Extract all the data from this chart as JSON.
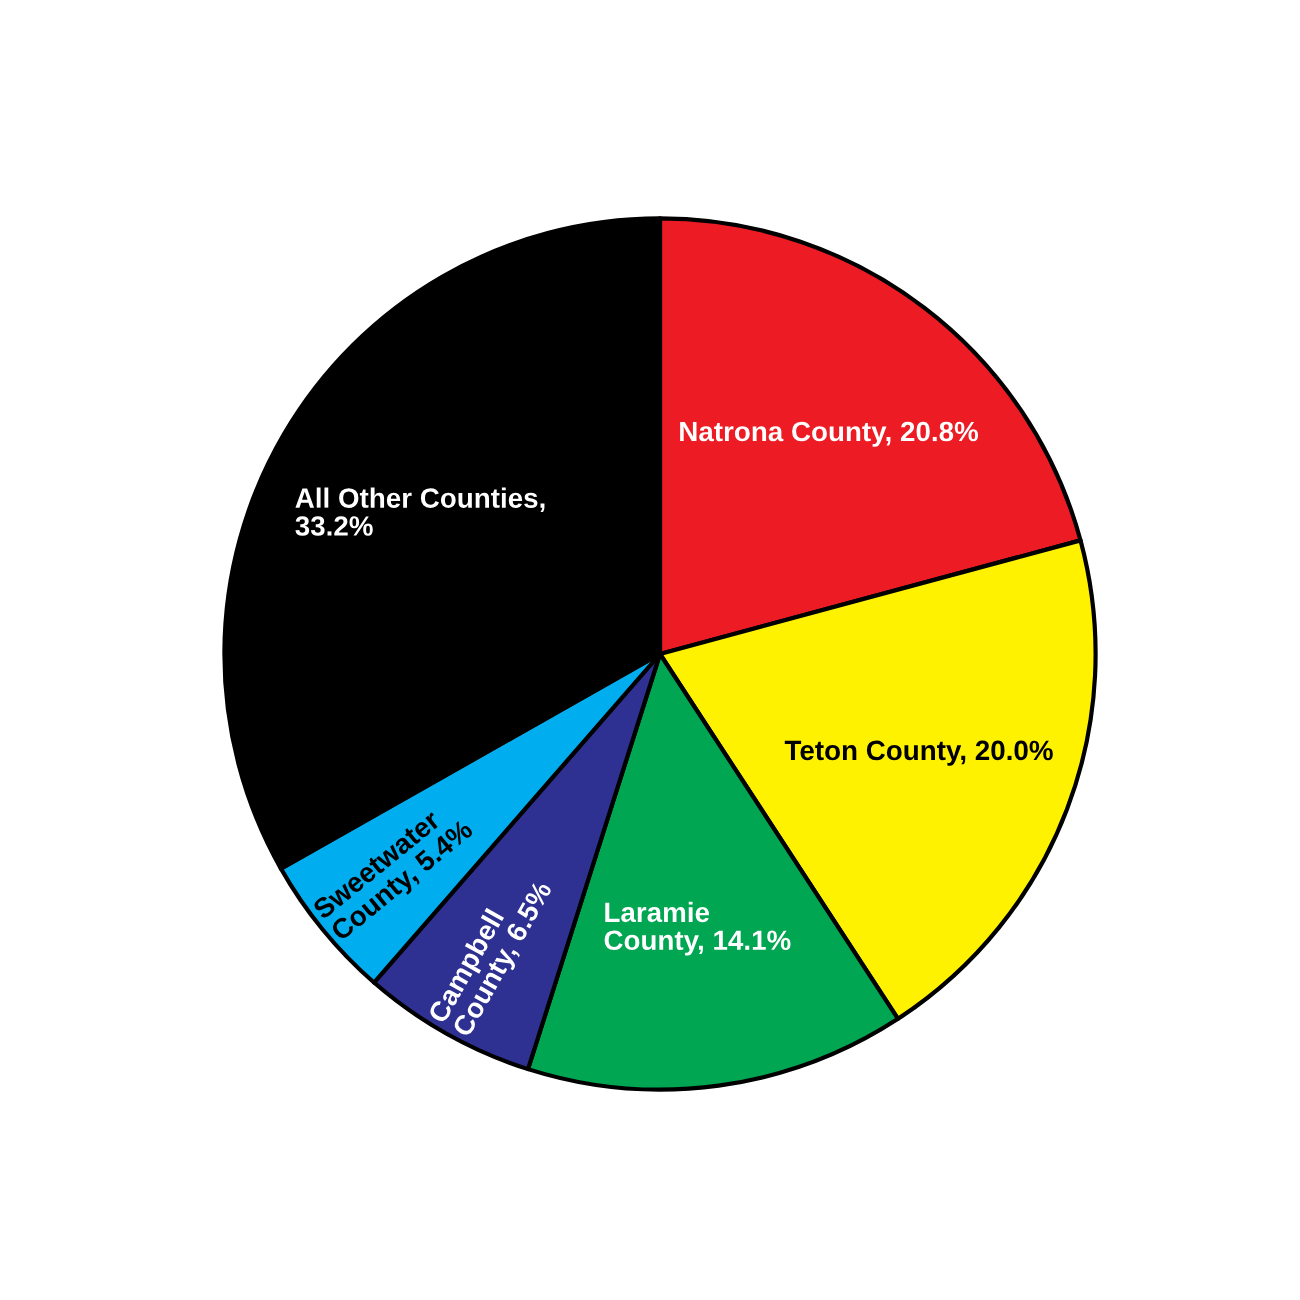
{
  "chart_data": {
    "type": "pie",
    "categories": [
      "Natrona County, 20.8%",
      "Teton County, 20.0%",
      "Laramie\nCounty, 14.1%",
      "Campbell\nCounty, 6.5%",
      "Sweetwater\nCounty, 5.4%",
      "All Other Counties,\n33.2%"
    ],
    "values": [
      20.8,
      20.0,
      14.1,
      6.5,
      5.4,
      33.2
    ],
    "colors": [
      "#ed1c24",
      "#fff200",
      "#00a651",
      "#2e3192",
      "#00aeef",
      "#000000"
    ]
  }
}
